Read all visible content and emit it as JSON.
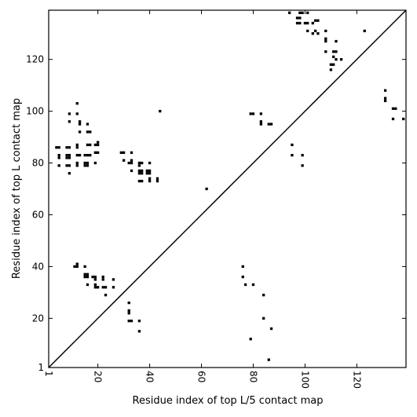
{
  "chart_data": {
    "type": "heatmap",
    "title": "",
    "xlabel": "Residue index of top L/5 contact map",
    "ylabel": "Residue index of top L contact map",
    "xlim": [
      1,
      139
    ],
    "ylim": [
      1,
      139
    ],
    "x_ticks": [
      1,
      20,
      40,
      60,
      80,
      100,
      120
    ],
    "y_ticks": [
      1,
      20,
      40,
      60,
      80,
      100,
      120
    ],
    "x_tick_labels": [
      "1",
      "20",
      "40",
      "60",
      "80",
      "100",
      "120"
    ],
    "y_tick_labels": [
      "1",
      "20",
      "40",
      "60",
      "80",
      "100",
      "120"
    ],
    "x_tick_label_rotation": 270,
    "grid": false,
    "diagonal": true,
    "upper_points": [
      [
        98,
        138
      ],
      [
        99,
        138
      ],
      [
        101,
        138
      ],
      [
        94,
        138
      ],
      [
        97,
        136
      ],
      [
        98,
        136
      ],
      [
        100,
        134
      ],
      [
        101,
        134
      ],
      [
        97,
        134
      ],
      [
        98,
        134
      ],
      [
        103,
        134
      ],
      [
        104,
        135
      ],
      [
        105,
        135
      ],
      [
        104,
        131
      ],
      [
        103,
        130
      ],
      [
        105,
        130
      ],
      [
        101,
        131
      ],
      [
        108,
        131
      ],
      [
        108,
        128
      ],
      [
        108,
        127
      ],
      [
        112,
        127
      ],
      [
        123,
        131
      ],
      [
        108,
        123
      ],
      [
        111,
        123
      ],
      [
        112,
        123
      ],
      [
        111,
        121
      ],
      [
        112,
        120
      ],
      [
        114,
        120
      ],
      [
        110,
        118
      ],
      [
        111,
        118
      ],
      [
        110,
        116
      ],
      [
        131,
        108
      ],
      [
        131,
        105
      ],
      [
        131,
        104
      ],
      [
        134,
        101
      ],
      [
        135,
        101
      ],
      [
        134,
        97
      ],
      [
        138,
        97
      ],
      [
        79,
        99
      ],
      [
        80,
        99
      ],
      [
        83,
        99
      ],
      [
        83,
        96
      ],
      [
        83,
        95
      ],
      [
        86,
        95
      ],
      [
        87,
        95
      ],
      [
        95,
        87
      ],
      [
        95,
        83
      ],
      [
        99,
        83
      ],
      [
        99,
        79
      ],
      [
        12,
        103
      ],
      [
        9,
        99
      ],
      [
        12,
        99
      ],
      [
        9,
        96
      ],
      [
        13,
        96
      ],
      [
        13,
        95
      ],
      [
        16,
        95
      ],
      [
        16,
        92
      ],
      [
        17,
        92
      ],
      [
        13,
        92
      ],
      [
        4,
        86
      ],
      [
        5,
        86
      ],
      [
        8,
        86
      ],
      [
        9,
        86
      ],
      [
        12,
        87
      ],
      [
        12,
        86
      ],
      [
        16,
        87
      ],
      [
        17,
        87
      ],
      [
        19,
        87
      ],
      [
        20,
        88
      ],
      [
        20,
        87
      ],
      [
        5,
        83
      ],
      [
        8,
        83
      ],
      [
        9,
        83
      ],
      [
        12,
        83
      ],
      [
        13,
        83
      ],
      [
        15,
        83
      ],
      [
        16,
        83
      ],
      [
        17,
        83
      ],
      [
        19,
        84
      ],
      [
        20,
        84
      ],
      [
        8,
        82
      ],
      [
        9,
        82
      ],
      [
        5,
        82
      ],
      [
        5,
        79
      ],
      [
        8,
        79
      ],
      [
        9,
        79
      ],
      [
        12,
        80
      ],
      [
        12,
        79
      ],
      [
        15,
        80
      ],
      [
        15,
        79
      ],
      [
        16,
        80
      ],
      [
        16,
        79
      ],
      [
        19,
        80
      ],
      [
        9,
        76
      ],
      [
        29,
        84
      ],
      [
        30,
        84
      ],
      [
        33,
        84
      ],
      [
        30,
        81
      ],
      [
        32,
        80
      ],
      [
        33,
        81
      ],
      [
        33,
        80
      ],
      [
        33,
        77
      ],
      [
        36,
        80
      ],
      [
        37,
        80
      ],
      [
        36,
        79
      ],
      [
        36,
        77
      ],
      [
        37,
        77
      ],
      [
        36,
        76
      ],
      [
        37,
        76
      ],
      [
        39,
        77
      ],
      [
        40,
        77
      ],
      [
        39,
        76
      ],
      [
        40,
        76
      ],
      [
        40,
        80
      ],
      [
        40,
        74
      ],
      [
        40,
        73
      ],
      [
        36,
        73
      ],
      [
        37,
        73
      ],
      [
        43,
        74
      ],
      [
        43,
        73
      ],
      [
        44,
        100
      ],
      [
        62,
        70
      ]
    ],
    "lower_points": [
      [
        11,
        40
      ],
      [
        12,
        41
      ],
      [
        12,
        40
      ],
      [
        15,
        40
      ],
      [
        15,
        37
      ],
      [
        16,
        37
      ],
      [
        15,
        36
      ],
      [
        16,
        36
      ],
      [
        18,
        36
      ],
      [
        19,
        36
      ],
      [
        19,
        35
      ],
      [
        22,
        36
      ],
      [
        22,
        35
      ],
      [
        26,
        35
      ],
      [
        16,
        33
      ],
      [
        19,
        33
      ],
      [
        19,
        32
      ],
      [
        20,
        32
      ],
      [
        22,
        32
      ],
      [
        23,
        32
      ],
      [
        26,
        32
      ],
      [
        23,
        29
      ],
      [
        32,
        26
      ],
      [
        32,
        23
      ],
      [
        32,
        22
      ],
      [
        32,
        19
      ],
      [
        33,
        19
      ],
      [
        36,
        19
      ],
      [
        36,
        15
      ],
      [
        76,
        40
      ],
      [
        76,
        36
      ],
      [
        77,
        33
      ],
      [
        80,
        33
      ],
      [
        84,
        29
      ],
      [
        84,
        20
      ],
      [
        87,
        16
      ],
      [
        79,
        12
      ],
      [
        86,
        4
      ]
    ]
  }
}
